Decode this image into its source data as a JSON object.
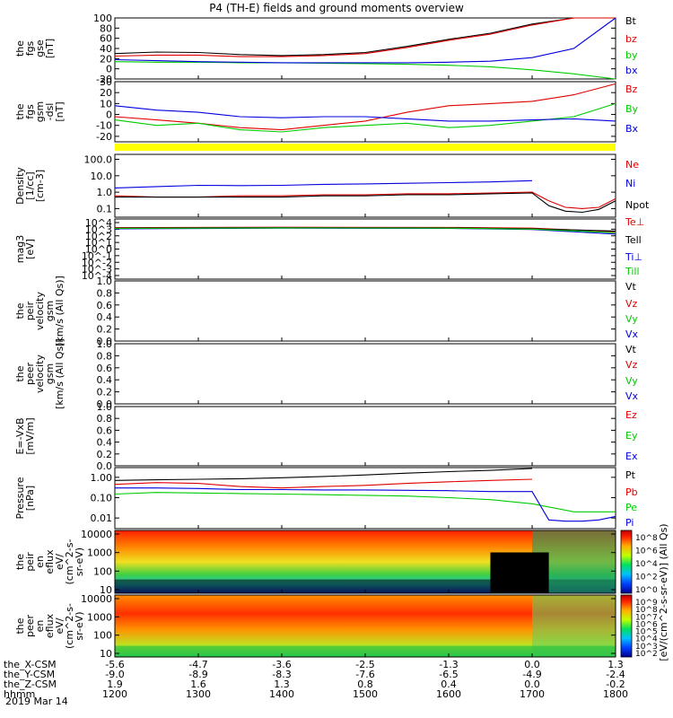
{
  "title": "P4 (TH-E) fields and ground moments overview",
  "date_label": "2019 Mar 14",
  "colors": {
    "black": "#000000",
    "red": "#e00000",
    "green": "#00cc00",
    "blue": "#0000e0",
    "yellow": "#ffff00"
  },
  "chart_data": [
    {
      "id": "p1",
      "type": "line",
      "ylabel": [
        "the",
        "fgs",
        "gse",
        "[nT]"
      ],
      "ylim": [
        -20,
        100
      ],
      "yticks": [
        "100",
        "80",
        "60",
        "40",
        "20",
        "0",
        "-20"
      ],
      "ytick_values": [
        100,
        80,
        60,
        40,
        20,
        0,
        -20
      ],
      "legend": [
        "Bt",
        "bz",
        "by",
        "bx"
      ],
      "grid": false,
      "series": [
        {
          "name": "Bt",
          "color": "black",
          "x": [
            1200,
            1250,
            1300,
            1350,
            1400,
            1450,
            1500,
            1550,
            1600,
            1650,
            1700,
            1750,
            1800
          ],
          "y": [
            30,
            33,
            32,
            28,
            26,
            28,
            32,
            44,
            58,
            70,
            88,
            100,
            120
          ]
        },
        {
          "name": "bz",
          "color": "red",
          "x": [
            1200,
            1250,
            1300,
            1350,
            1400,
            1450,
            1500,
            1550,
            1600,
            1650,
            1700,
            1750,
            1800
          ],
          "y": [
            25,
            27,
            27,
            24,
            24,
            26,
            30,
            42,
            56,
            68,
            86,
            100,
            118
          ]
        },
        {
          "name": "by",
          "color": "green",
          "x": [
            1200,
            1250,
            1300,
            1350,
            1400,
            1450,
            1500,
            1550,
            1600,
            1650,
            1700,
            1750,
            1800
          ],
          "y": [
            14,
            13,
            13,
            12,
            12,
            11,
            10,
            9,
            7,
            4,
            -2,
            -10,
            -20
          ]
        },
        {
          "name": "bx",
          "color": "blue",
          "x": [
            1200,
            1250,
            1300,
            1350,
            1400,
            1450,
            1500,
            1550,
            1600,
            1650,
            1700,
            1750,
            1800
          ],
          "y": [
            18,
            16,
            14,
            13,
            12,
            12,
            12,
            12,
            13,
            15,
            22,
            40,
            100
          ]
        }
      ]
    },
    {
      "id": "p2",
      "type": "line",
      "ylabel": [
        "the",
        "fgs",
        "gsm",
        "-dsl",
        "[nT]"
      ],
      "ylim": [
        -25,
        30
      ],
      "yticks": [
        "30",
        "20",
        "10",
        "0",
        "-10",
        "-20"
      ],
      "ytick_values": [
        30,
        20,
        10,
        0,
        -10,
        -20
      ],
      "legend": [
        "Bz",
        "By",
        "Bx"
      ],
      "grid": false,
      "series": [
        {
          "name": "Bz",
          "color": "red",
          "x": [
            1200,
            1250,
            1300,
            1350,
            1400,
            1450,
            1500,
            1550,
            1600,
            1650,
            1700,
            1750,
            1800
          ],
          "y": [
            -2,
            -5,
            -8,
            -12,
            -14,
            -10,
            -6,
            2,
            8,
            10,
            12,
            18,
            28
          ]
        },
        {
          "name": "By",
          "color": "green",
          "x": [
            1200,
            1250,
            1300,
            1350,
            1400,
            1450,
            1500,
            1550,
            1600,
            1650,
            1700,
            1750,
            1800
          ],
          "y": [
            -5,
            -10,
            -8,
            -14,
            -16,
            -12,
            -10,
            -8,
            -12,
            -10,
            -6,
            -2,
            10
          ]
        },
        {
          "name": "Bx",
          "color": "blue",
          "x": [
            1200,
            1250,
            1300,
            1350,
            1400,
            1450,
            1500,
            1550,
            1600,
            1650,
            1700,
            1750,
            1800
          ],
          "y": [
            8,
            4,
            2,
            -2,
            -3,
            -2,
            -2,
            -4,
            -6,
            -6,
            -5,
            -4,
            -6
          ]
        }
      ]
    },
    {
      "id": "p3",
      "type": "line",
      "ylabel": [
        "Density",
        "[1/cc]",
        "[cm-3]"
      ],
      "ylim": [
        0.03,
        200
      ],
      "log": true,
      "yticks": [
        "100.0",
        "10.0",
        "1.0",
        "0.1"
      ],
      "ytick_values": [
        100,
        10,
        1,
        0.1
      ],
      "legend": [
        "Ne",
        "Ni",
        "Npot"
      ],
      "grid": false,
      "series": [
        {
          "name": "Ne",
          "color": "red",
          "x": [
            1200,
            1250,
            1300,
            1350,
            1400,
            1450,
            1500,
            1550,
            1600,
            1650,
            1700,
            1720,
            1740,
            1760,
            1780,
            1800
          ],
          "y": [
            0.6,
            0.5,
            0.5,
            0.6,
            0.6,
            0.7,
            0.7,
            0.8,
            0.8,
            0.9,
            1.0,
            0.3,
            0.12,
            0.1,
            0.12,
            0.4
          ]
        },
        {
          "name": "Ni",
          "color": "blue",
          "x": [
            1200,
            1250,
            1300,
            1350,
            1400,
            1450,
            1500,
            1550,
            1600,
            1650,
            1700
          ],
          "y": [
            1.8,
            2.2,
            2.6,
            2.5,
            2.6,
            3.0,
            3.2,
            3.5,
            3.8,
            4.2,
            5.0
          ]
        },
        {
          "name": "Npot",
          "color": "black",
          "x": [
            1200,
            1250,
            1300,
            1350,
            1400,
            1450,
            1500,
            1550,
            1600,
            1650,
            1700,
            1720,
            1740,
            1760,
            1780,
            1800
          ],
          "y": [
            0.5,
            0.5,
            0.5,
            0.5,
            0.5,
            0.6,
            0.6,
            0.7,
            0.7,
            0.8,
            0.9,
            0.15,
            0.07,
            0.06,
            0.09,
            0.3
          ]
        }
      ]
    },
    {
      "id": "p4",
      "type": "line",
      "ylabel": [
        "mag3",
        "[eV]"
      ],
      "yticks": [
        "10^4",
        "10^3",
        "10^2",
        "10^1",
        "10^0",
        "10^-1",
        "10^-2",
        "10^-3",
        "10^-4"
      ],
      "legend": [
        "Te⊥",
        "Tell",
        "Ti⊥",
        "Till"
      ],
      "grid": false,
      "series": [
        {
          "name": "Te⊥",
          "color": "red",
          "x": [
            1200,
            1400,
            1600,
            1700,
            1800
          ],
          "y": [
            700,
            800,
            750,
            600,
            200
          ]
        },
        {
          "name": "Tell",
          "color": "black",
          "x": [
            1200,
            1400,
            1600,
            1700,
            1800
          ],
          "y": [
            600,
            700,
            650,
            500,
            250
          ]
        },
        {
          "name": "Ti⊥",
          "color": "blue",
          "x": [
            1200,
            1400,
            1600,
            1700,
            1800
          ],
          "y": [
            500,
            600,
            550,
            400,
            100
          ]
        },
        {
          "name": "Till",
          "color": "green",
          "x": [
            1200,
            1400,
            1600,
            1700,
            1800
          ],
          "y": [
            550,
            650,
            600,
            450,
            150
          ]
        }
      ]
    },
    {
      "id": "p5",
      "type": "line",
      "ylabel": [
        "the",
        "peir",
        "velocity",
        "gsm",
        "[km/s (All Qs)]"
      ],
      "ylim": [
        0,
        1
      ],
      "yticks": [
        "1.0",
        "0.8",
        "0.6",
        "0.4",
        "0.2",
        "0.0"
      ],
      "ytick_values": [
        1,
        0.8,
        0.6,
        0.4,
        0.2,
        0
      ],
      "legend": [
        "Vt",
        "Vz",
        "Vy",
        "Vx"
      ],
      "series": []
    },
    {
      "id": "p6",
      "type": "line",
      "ylabel": [
        "the",
        "peer",
        "velocity",
        "gsm",
        "[km/s (All Qs)]"
      ],
      "ylim": [
        0,
        1
      ],
      "yticks": [
        "1.0",
        "0.8",
        "0.6",
        "0.4",
        "0.2",
        "0.0"
      ],
      "ytick_values": [
        1,
        0.8,
        0.6,
        0.4,
        0.2,
        0
      ],
      "legend": [
        "Vt",
        "Vz",
        "Vy",
        "Vx"
      ],
      "series": []
    },
    {
      "id": "p7",
      "type": "line",
      "ylabel": [
        "E=-VxB",
        "[mV/m]"
      ],
      "ylim": [
        0,
        1
      ],
      "yticks": [
        "1.0",
        "0.8",
        "0.6",
        "0.4",
        "0.2",
        "0.0"
      ],
      "ytick_values": [
        1,
        0.8,
        0.6,
        0.4,
        0.2,
        0
      ],
      "legend": [
        "Ez",
        "Ey",
        "Ex"
      ],
      "series": []
    },
    {
      "id": "p8",
      "type": "line",
      "ylabel": [
        "Pressure",
        "[nPa]"
      ],
      "ylim": [
        0.003,
        3
      ],
      "log": true,
      "yticks": [
        "1.00",
        "0.10",
        "0.01"
      ],
      "ytick_values": [
        1,
        0.1,
        0.01
      ],
      "legend": [
        "Pt",
        "Pb",
        "Pe",
        "Pi"
      ],
      "grid": false,
      "series": [
        {
          "name": "Pt",
          "color": "black",
          "x": [
            1200,
            1250,
            1300,
            1350,
            1400,
            1450,
            1500,
            1550,
            1600,
            1650,
            1700
          ],
          "y": [
            0.7,
            0.75,
            0.8,
            0.85,
            0.95,
            1.1,
            1.3,
            1.6,
            1.9,
            2.2,
            2.7
          ]
        },
        {
          "name": "Pb",
          "color": "red",
          "x": [
            1200,
            1250,
            1300,
            1350,
            1400,
            1450,
            1500,
            1550,
            1600,
            1650,
            1700
          ],
          "y": [
            0.45,
            0.55,
            0.5,
            0.35,
            0.3,
            0.35,
            0.4,
            0.5,
            0.6,
            0.7,
            0.8
          ]
        },
        {
          "name": "Pe",
          "color": "green",
          "x": [
            1200,
            1250,
            1300,
            1350,
            1400,
            1450,
            1500,
            1550,
            1600,
            1650,
            1700,
            1750,
            1800
          ],
          "y": [
            0.15,
            0.18,
            0.17,
            0.16,
            0.15,
            0.14,
            0.13,
            0.12,
            0.1,
            0.08,
            0.05,
            0.02,
            0.02
          ]
        },
        {
          "name": "Pi",
          "color": "blue",
          "x": [
            1200,
            1250,
            1300,
            1350,
            1400,
            1450,
            1500,
            1550,
            1600,
            1650,
            1700,
            1720,
            1740,
            1760,
            1780,
            1800
          ],
          "y": [
            0.3,
            0.3,
            0.28,
            0.25,
            0.25,
            0.24,
            0.24,
            0.23,
            0.22,
            0.2,
            0.2,
            0.008,
            0.007,
            0.007,
            0.008,
            0.012
          ]
        }
      ]
    },
    {
      "id": "p9",
      "type": "heatmap",
      "ylabel": [
        "the",
        "peir",
        "en",
        "eflux",
        "eV/",
        "(cm^2-s-",
        "sr-eV)"
      ],
      "yticks": [
        "10000",
        "1000",
        "100",
        "10"
      ],
      "ytick_values": [
        10000,
        1000,
        100,
        10
      ],
      "colorbar_ticks": [
        "10^8",
        "10^6",
        "10^4",
        "10^2",
        "10^0"
      ],
      "colorbar_label": "[eV/(cm^2-s-sr-eV)] (All Qs)"
    },
    {
      "id": "p10",
      "type": "heatmap",
      "ylabel": [
        "the",
        "peer",
        "en",
        "eflux",
        "eV/",
        "(cm^2-s-",
        "sr-eV)"
      ],
      "yticks": [
        "10000",
        "1000",
        "100",
        "10"
      ],
      "ytick_values": [
        10000,
        1000,
        100,
        10
      ],
      "colorbar_ticks": [
        "10^9",
        "10^8",
        "10^7",
        "10^6",
        "10^5",
        "10^4",
        "10^3",
        "10^2"
      ],
      "colorbar_label": "[eV/(cm^2-s-sr-eV)]"
    }
  ],
  "xaxis": {
    "rows": [
      {
        "label": "the_X-CSM",
        "values": [
          "-5.6",
          "-4.7",
          "-3.6",
          "-2.5",
          "-1.3",
          "0.0",
          "1.3"
        ]
      },
      {
        "label": "the_Y-CSM",
        "values": [
          "-9.0",
          "-8.9",
          "-8.3",
          "-7.6",
          "-6.5",
          "-4.9",
          "-2.4"
        ]
      },
      {
        "label": "the_Z-CSM",
        "values": [
          "1.9",
          "1.6",
          "1.3",
          "0.8",
          "0.4",
          "0.0",
          "-0.2"
        ]
      },
      {
        "label": "hhmm",
        "values": [
          "1200",
          "1300",
          "1400",
          "1500",
          "1600",
          "1700",
          "1800"
        ]
      }
    ],
    "hours": [
      1200,
      1300,
      1400,
      1500,
      1600,
      1700,
      1800
    ]
  }
}
